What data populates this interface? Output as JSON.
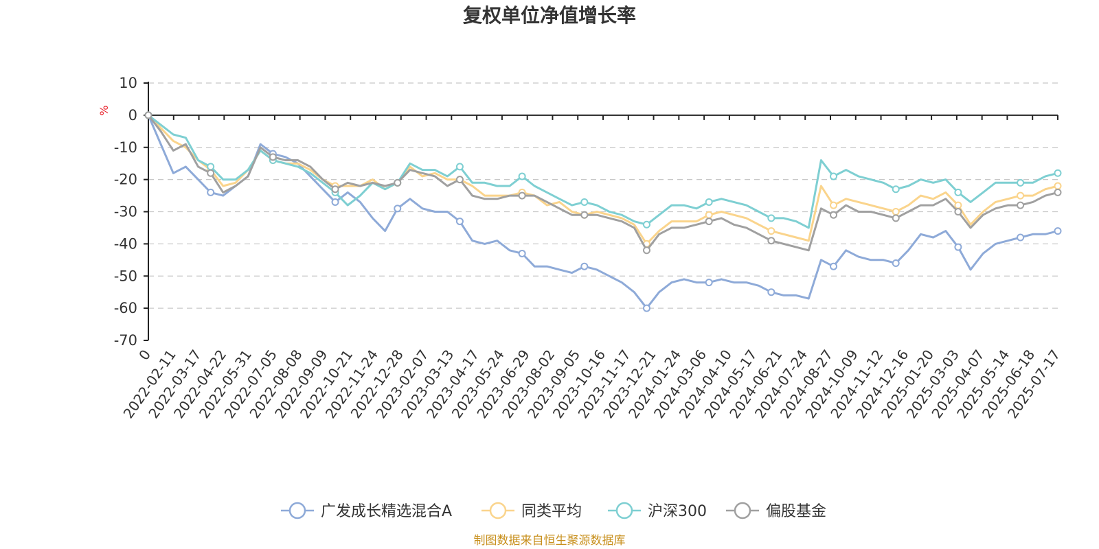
{
  "chart_data": {
    "type": "line",
    "title": "复权单位净值增长率",
    "ylabel": "%",
    "ylim": [
      -70,
      10
    ],
    "yticks": [
      10,
      0,
      -10,
      -20,
      -30,
      -40,
      -50,
      -60,
      -70
    ],
    "xticks": [
      "0",
      "2022-02-11",
      "2022-03-17",
      "2022-04-22",
      "2022-05-31",
      "2022-07-05",
      "2022-08-08",
      "2022-09-09",
      "2022-10-21",
      "2022-11-24",
      "2022-12-28",
      "2023-02-07",
      "2023-03-13",
      "2023-04-17",
      "2023-05-24",
      "2023-06-29",
      "2023-08-02",
      "2023-09-05",
      "2023-10-16",
      "2023-11-17",
      "2023-12-21",
      "2024-01-24",
      "2024-03-06",
      "2024-04-10",
      "2024-05-17",
      "2024-06-21",
      "2024-07-24",
      "2024-08-27",
      "2024-10-09",
      "2024-11-12",
      "2024-12-16",
      "2025-01-20",
      "2025-03-03",
      "2025-04-07",
      "2025-05-14",
      "2025-06-18",
      "2025-07-17"
    ],
    "grid": true,
    "legend_position": "bottom",
    "series": [
      {
        "name": "广发成长精选混合A",
        "color": "#8eaad8",
        "values": [
          0,
          -9,
          -18,
          -16,
          -20,
          -24,
          -25,
          -22,
          -19,
          -9,
          -12,
          -13,
          -15,
          -19,
          -23,
          -27,
          -24,
          -27,
          -32,
          -36,
          -29,
          -26,
          -29,
          -30,
          -30,
          -33,
          -39,
          -40,
          -39,
          -42,
          -43,
          -47,
          -47,
          -48,
          -49,
          -47,
          -48,
          -50,
          -52,
          -55,
          -60,
          -55,
          -52,
          -51,
          -52,
          -52,
          -51,
          -52,
          -52,
          -53,
          -55,
          -56,
          -56,
          -57,
          -45,
          -47,
          -42,
          -44,
          -45,
          -45,
          -46,
          -42,
          -37,
          -38,
          -36,
          -41,
          -48,
          -43,
          -40,
          -39,
          -38,
          -37,
          -37,
          -36
        ]
      },
      {
        "name": "同类平均",
        "color": "#fad48c",
        "values": [
          0,
          -4,
          -8,
          -10,
          -14,
          -17,
          -22,
          -21,
          -17,
          -11,
          -14,
          -15,
          -15,
          -17,
          -20,
          -22,
          -22,
          -22,
          -20,
          -23,
          -21,
          -16,
          -19,
          -18,
          -20,
          -20,
          -22,
          -25,
          -25,
          -25,
          -24,
          -25,
          -28,
          -27,
          -30,
          -31,
          -30,
          -31,
          -32,
          -34,
          -40,
          -36,
          -33,
          -33,
          -33,
          -31,
          -30,
          -31,
          -32,
          -34,
          -36,
          -37,
          -38,
          -39,
          -22,
          -28,
          -26,
          -27,
          -28,
          -29,
          -30,
          -28,
          -25,
          -26,
          -24,
          -28,
          -34,
          -30,
          -27,
          -26,
          -25,
          -25,
          -23,
          -22
        ]
      },
      {
        "name": "沪深300",
        "color": "#7ecfd2",
        "values": [
          0,
          -3,
          -6,
          -7,
          -14,
          -16,
          -20,
          -20,
          -17,
          -11,
          -14,
          -15,
          -16,
          -18,
          -21,
          -24,
          -28,
          -25,
          -21,
          -23,
          -21,
          -15,
          -17,
          -17,
          -19,
          -16,
          -21,
          -21,
          -22,
          -22,
          -19,
          -22,
          -24,
          -26,
          -28,
          -27,
          -28,
          -30,
          -31,
          -33,
          -34,
          -31,
          -28,
          -28,
          -29,
          -27,
          -26,
          -27,
          -28,
          -30,
          -32,
          -32,
          -33,
          -35,
          -14,
          -19,
          -17,
          -19,
          -20,
          -21,
          -23,
          -22,
          -20,
          -21,
          -20,
          -24,
          -27,
          -24,
          -21,
          -21,
          -21,
          -21,
          -19,
          -18
        ]
      },
      {
        "name": "偏股基金",
        "color": "#a0a0a0",
        "values": [
          0,
          -5,
          -11,
          -9,
          -16,
          -18,
          -24,
          -22,
          -19,
          -10,
          -13,
          -14,
          -14,
          -16,
          -20,
          -23,
          -21,
          -22,
          -21,
          -22,
          -21,
          -17,
          -18,
          -19,
          -22,
          -20,
          -25,
          -26,
          -26,
          -25,
          -25,
          -25,
          -27,
          -29,
          -31,
          -31,
          -31,
          -32,
          -33,
          -35,
          -42,
          -37,
          -35,
          -35,
          -34,
          -33,
          -32,
          -34,
          -35,
          -37,
          -39,
          -40,
          -41,
          -42,
          -29,
          -31,
          -28,
          -30,
          -30,
          -31,
          -32,
          -30,
          -28,
          -28,
          -26,
          -30,
          -35,
          -31,
          -29,
          -28,
          -28,
          -27,
          -25,
          -24
        ]
      }
    ]
  },
  "footer": {
    "source": "制图数据来自恒生聚源数据库"
  }
}
